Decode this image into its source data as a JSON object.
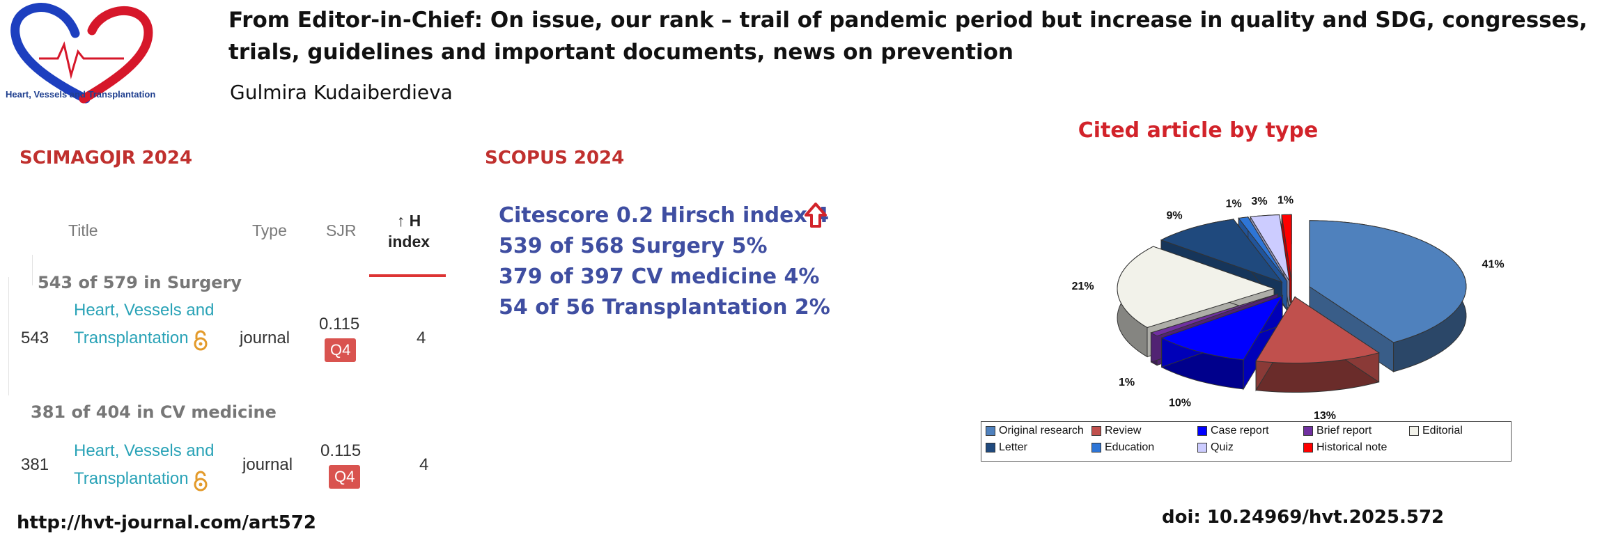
{
  "logo": {
    "text": "Heart, Vessels and Transplantation"
  },
  "header": {
    "title": "From Editor-in-Chief: On issue, our rank – trail of pandemic period but increase in quality and SDG, congresses, trials, guidelines and important documents, news on prevention",
    "author": "Gulmira Kudaiberdieva"
  },
  "scimago": {
    "heading": "SCIMAGOJR 2024",
    "columns": {
      "title": "Title",
      "type": "Type",
      "sjr": "SJR",
      "h_index_arrow": "↑ H",
      "h_index": "index"
    },
    "groups": [
      {
        "label": "543 of 579  in Surgery",
        "rank": "543",
        "journal": "Heart, Vessels and Transplantation",
        "type": "journal",
        "sjr": "0.115",
        "quartile": "Q4",
        "h": "4"
      },
      {
        "label": "381 of 404 in CV medicine",
        "rank": "381",
        "journal": "Heart, Vessels and Transplantation",
        "type": "journal",
        "sjr": "0.115",
        "quartile": "Q4",
        "h": "4"
      }
    ]
  },
  "scopus": {
    "heading": "SCOPUS 2024",
    "lines": [
      "Citescore 0.2  Hirsch index 4",
      "539 of 568 Surgery   5%",
      "379 of 397 CV medicine 4%",
      "54 of 56 Transplantation  2%"
    ],
    "trend_icon": "up-arrow-outline-icon"
  },
  "chart_data": {
    "type": "pie",
    "title": "Cited article by type",
    "exploded": true,
    "three_d": true,
    "legend_position": "bottom",
    "slices": [
      {
        "label": "Original research",
        "value": 41,
        "display": "41%",
        "color": "#4f81bd"
      },
      {
        "label": "Review",
        "value": 13,
        "display": "13%",
        "color": "#c0504d"
      },
      {
        "label": "Case report",
        "value": 10,
        "display": "10%",
        "color": "#0000ff"
      },
      {
        "label": "Brief report",
        "value": 1,
        "display": "1%",
        "color": "#7030a0"
      },
      {
        "label": "Editorial",
        "value": 21,
        "display": "21%",
        "color": "#f2f2ea"
      },
      {
        "label": "Letter",
        "value": 9,
        "display": "9%",
        "color": "#1f497d"
      },
      {
        "label": "Education",
        "value": 1,
        "display": "1%",
        "color": "#2e75d6"
      },
      {
        "label": "Quiz",
        "value": 3,
        "display": "3%",
        "color": "#ccccff"
      },
      {
        "label": "Historical note",
        "value": 1,
        "display": "1%",
        "color": "#ff0000"
      }
    ]
  },
  "footer": {
    "url": "http://hvt-journal.com/art572",
    "doi": "doi: 10.24969/hvt.2025.572"
  }
}
